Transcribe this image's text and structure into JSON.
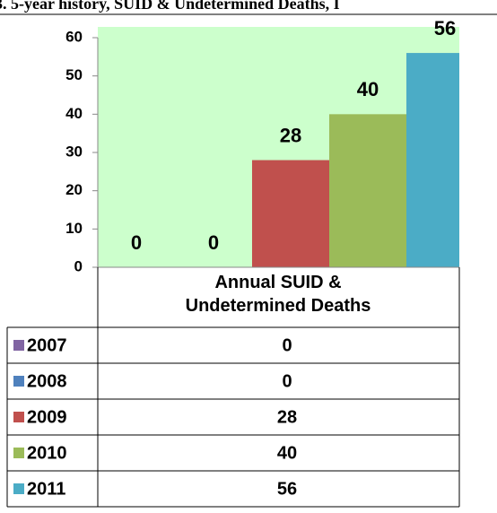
{
  "chart_data": {
    "type": "bar",
    "title": "3. 5-year history, SUID & Undetermined Deaths, I",
    "categories": [
      "2007",
      "2008",
      "2009",
      "2010",
      "2011"
    ],
    "series": [
      {
        "name": "Annual SUID & Undetermined Deaths",
        "values": [
          0,
          0,
          28,
          40,
          56
        ],
        "colors": [
          "#8064a2",
          "#4f81bd",
          "#c0504d",
          "#9bbb59",
          "#4bacc6"
        ]
      }
    ],
    "ylim": [
      0,
      60
    ],
    "yticks": [
      0,
      10,
      20,
      30,
      40,
      50,
      60
    ],
    "plot_background": "#ccffcc",
    "grid": false,
    "data_table": true
  }
}
